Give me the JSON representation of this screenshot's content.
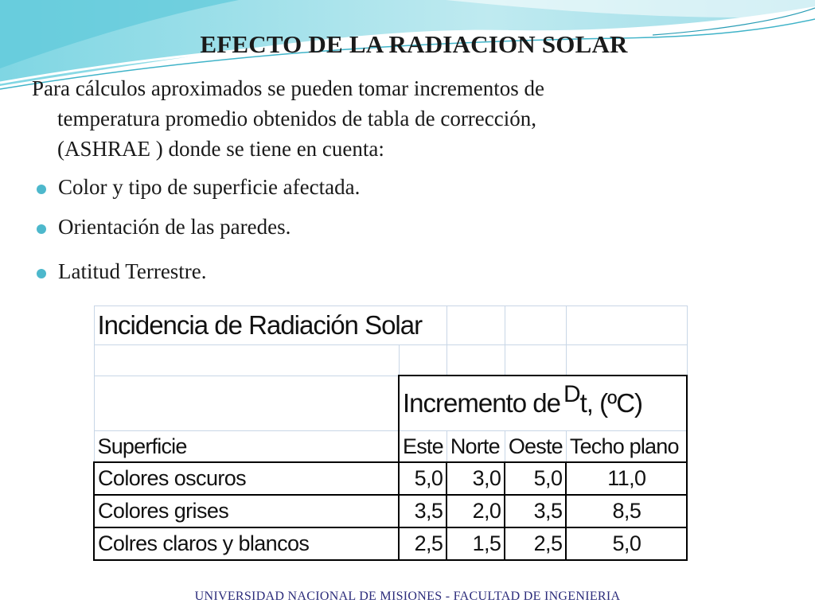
{
  "slide": {
    "title": "EFECTO DE LA RADIACION SOLAR",
    "intro_line1": "Para cálculos aproximados se pueden tomar incrementos de",
    "intro_line2": "temperatura promedio obtenidos de tabla de corrección,",
    "intro_line3": "(ASHRAE ) donde se tiene en cuenta:",
    "bullets": [
      "Color y tipo de superficie afectada.",
      "Orientación de las paredes.",
      "Latitud Terrestre."
    ],
    "footer": "UNIVERSIDAD NACIONAL DE MISIONES - FACULTAD DE INGENIERIA",
    "accent_color": "#4db8cc"
  },
  "table": {
    "title": "Incidencia de Radiación Solar",
    "group_header_prefix": "Incremento de",
    "delta_symbol": "D",
    "group_header_suffix": "t, (ºC)",
    "columns": [
      "Superficie",
      "Este",
      "Norte",
      "Oeste",
      "Techo plano"
    ],
    "rows": [
      [
        "Colores oscuros",
        "5,0",
        "3,0",
        "5,0",
        "11,0"
      ],
      [
        "Colores grises",
        "3,5",
        "2,0",
        "3,5",
        "8,5"
      ],
      [
        "Colres claros y blancos",
        "2,5",
        "1,5",
        "2,5",
        "5,0"
      ]
    ]
  }
}
